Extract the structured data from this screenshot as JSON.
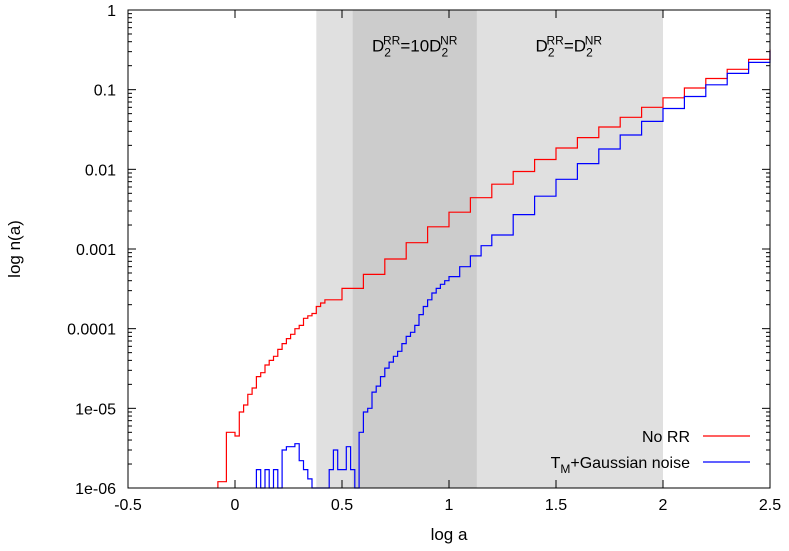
{
  "chart_data": {
    "type": "line",
    "step": true,
    "title": "",
    "xlabel": "log a",
    "ylabel": "log n(a)",
    "xlim": [
      -0.5,
      2.5
    ],
    "ylim": [
      1e-06,
      1
    ],
    "yscale": "log",
    "grid": false,
    "legend_position": "bottom-right",
    "x_ticks": [
      {
        "value": -0.5,
        "label": "-0.5"
      },
      {
        "value": 0,
        "label": "0"
      },
      {
        "value": 0.5,
        "label": "0.5"
      },
      {
        "value": 1,
        "label": "1"
      },
      {
        "value": 1.5,
        "label": "1.5"
      },
      {
        "value": 2,
        "label": "2"
      },
      {
        "value": 2.5,
        "label": "2.5"
      }
    ],
    "y_ticks": [
      {
        "value": 1,
        "label": "1"
      },
      {
        "value": 0.1,
        "label": "0.1"
      },
      {
        "value": 0.01,
        "label": "0.01"
      },
      {
        "value": 0.001,
        "label": "0.001"
      },
      {
        "value": 0.0001,
        "label": "0.0001"
      },
      {
        "value": 1e-05,
        "label": "1e-05"
      },
      {
        "value": 1e-06,
        "label": "1e-06"
      }
    ],
    "regions": [
      {
        "x0": 0.38,
        "x1": 2.0,
        "shade": "#e0e0e0"
      },
      {
        "x0": 0.55,
        "x1": 1.13,
        "shade": "#cccccc"
      }
    ],
    "annotations": [
      {
        "x": 0.84,
        "y": 0.3,
        "parts": [
          {
            "t": "D"
          },
          {
            "t": "2",
            "sub": true
          },
          {
            "t": "RR",
            "sup": true
          },
          {
            "t": "=10D"
          },
          {
            "t": "2",
            "sub": true
          },
          {
            "t": "NR",
            "sup": true
          }
        ]
      },
      {
        "x": 1.56,
        "y": 0.3,
        "parts": [
          {
            "t": "D"
          },
          {
            "t": "2",
            "sub": true
          },
          {
            "t": "RR",
            "sup": true
          },
          {
            "t": "=D"
          },
          {
            "t": "2",
            "sub": true
          },
          {
            "t": "NR",
            "sup": true
          }
        ]
      }
    ],
    "series": [
      {
        "name": "No RR",
        "legend_parts": [
          {
            "t": "No RR"
          }
        ],
        "color": "#ff0000",
        "x": [
          -0.08,
          -0.04,
          0.0,
          0.02,
          0.04,
          0.06,
          0.08,
          0.1,
          0.12,
          0.14,
          0.16,
          0.18,
          0.2,
          0.22,
          0.24,
          0.26,
          0.28,
          0.3,
          0.32,
          0.34,
          0.36,
          0.38,
          0.4,
          0.42,
          0.5,
          0.6,
          0.7,
          0.8,
          0.9,
          1.0,
          1.1,
          1.2,
          1.3,
          1.4,
          1.5,
          1.6,
          1.7,
          1.8,
          1.9,
          2.0,
          2.1,
          2.2,
          2.3,
          2.4,
          2.5
        ],
        "y": [
          1.2e-06,
          5e-06,
          4.5e-06,
          9e-06,
          1.1e-05,
          1.5e-05,
          1.8e-05,
          2.5e-05,
          2.8e-05,
          3.5e-05,
          4e-05,
          4.5e-05,
          5.5e-05,
          6.5e-05,
          7.5e-05,
          8.5e-05,
          0.0001,
          0.00011,
          0.000135,
          0.000145,
          0.000155,
          0.00019,
          0.00021,
          0.00023,
          0.00032,
          0.00048,
          0.00075,
          0.0012,
          0.0019,
          0.0029,
          0.0044,
          0.0065,
          0.0094,
          0.0133,
          0.0185,
          0.025,
          0.034,
          0.045,
          0.06,
          0.079,
          0.105,
          0.138,
          0.18,
          0.24,
          0.32
        ]
      },
      {
        "name": "T_M+Gaussian noise",
        "legend_parts": [
          {
            "t": "T"
          },
          {
            "t": "M",
            "sub": true
          },
          {
            "t": "+Gaussian noise"
          }
        ],
        "color": "#0000ff",
        "x": [
          0.1,
          0.12,
          0.14,
          0.16,
          0.18,
          0.2,
          0.22,
          0.24,
          0.26,
          0.28,
          0.3,
          0.32,
          0.34,
          0.36,
          0.38,
          0.4,
          0.42,
          0.44,
          0.46,
          0.48,
          0.5,
          0.52,
          0.54,
          0.56,
          0.58,
          0.6,
          0.62,
          0.64,
          0.66,
          0.68,
          0.7,
          0.72,
          0.74,
          0.76,
          0.78,
          0.8,
          0.82,
          0.84,
          0.86,
          0.88,
          0.9,
          0.92,
          0.94,
          0.96,
          0.98,
          1.0,
          1.05,
          1.1,
          1.15,
          1.2,
          1.3,
          1.4,
          1.5,
          1.6,
          1.7,
          1.8,
          1.9,
          2.0,
          2.1,
          2.2,
          2.3,
          2.4,
          2.5
        ],
        "y": [
          1.7e-06,
          1e-06,
          1.7e-06,
          1e-06,
          1.7e-06,
          1e-06,
          3e-06,
          3.3e-06,
          3.3e-06,
          3.6e-06,
          2.2e-06,
          1.7e-06,
          1.3e-06,
          1e-06,
          1e-06,
          1e-06,
          1e-06,
          1.7e-06,
          3e-06,
          1.7e-06,
          1.7e-06,
          3.3e-06,
          1.7e-06,
          1e-06,
          5e-06,
          9e-06,
          1e-05,
          1.6e-05,
          1.9e-05,
          2.5e-05,
          3.2e-05,
          3.8e-05,
          4.5e-05,
          5.2e-05,
          6.5e-05,
          8e-05,
          9e-05,
          0.00011,
          0.00015,
          0.00019,
          0.00023,
          0.00028,
          0.00032,
          0.00036,
          0.0004,
          0.00045,
          0.0006,
          0.00082,
          0.0011,
          0.0015,
          0.0027,
          0.0046,
          0.0075,
          0.0118,
          0.018,
          0.027,
          0.04,
          0.058,
          0.082,
          0.115,
          0.16,
          0.22,
          0.31
        ]
      }
    ]
  }
}
